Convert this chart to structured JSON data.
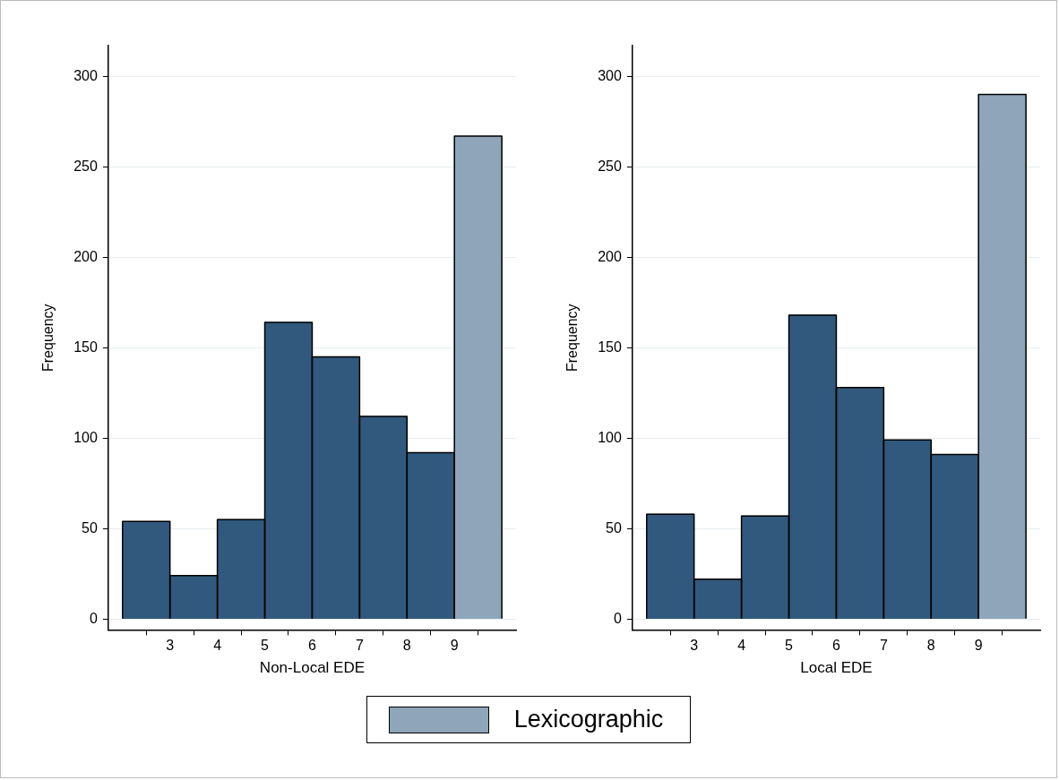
{
  "chart_data": [
    {
      "type": "histogram",
      "xlabel": "Non-Local EDE",
      "ylabel": "Frequency",
      "bins": [
        2,
        3,
        4,
        5,
        6,
        7,
        8,
        9,
        10
      ],
      "xlim": [
        1.7,
        10.3
      ],
      "xticks": [
        3,
        4,
        5,
        6,
        7,
        8,
        9
      ],
      "ylim": [
        -6,
        317
      ],
      "yticks": [
        0,
        50,
        100,
        150,
        200,
        250,
        300
      ],
      "grid": "y",
      "legend": "bottom",
      "series": [
        {
          "color": "#31597d",
          "values": [
            54,
            24,
            55,
            164,
            145,
            112,
            92,
            null
          ]
        },
        {
          "name": "Lexicographic",
          "color": "#8ea5ba",
          "values": [
            null,
            null,
            null,
            null,
            null,
            null,
            null,
            267
          ]
        }
      ]
    },
    {
      "type": "histogram",
      "xlabel": "Local EDE",
      "ylabel": "Frequency",
      "bins": [
        2,
        3,
        4,
        5,
        6,
        7,
        8,
        9,
        10
      ],
      "xlim": [
        1.7,
        10.3
      ],
      "xticks": [
        3,
        4,
        5,
        6,
        7,
        8,
        9
      ],
      "ylim": [
        -6,
        317
      ],
      "yticks": [
        0,
        50,
        100,
        150,
        200,
        250,
        300
      ],
      "grid": "y",
      "legend": "bottom",
      "series": [
        {
          "color": "#31597d",
          "values": [
            58,
            22,
            57,
            168,
            128,
            99,
            91,
            null
          ]
        },
        {
          "name": "Lexicographic",
          "color": "#8ea5ba",
          "values": [
            null,
            null,
            null,
            null,
            null,
            null,
            null,
            290
          ]
        }
      ]
    }
  ]
}
